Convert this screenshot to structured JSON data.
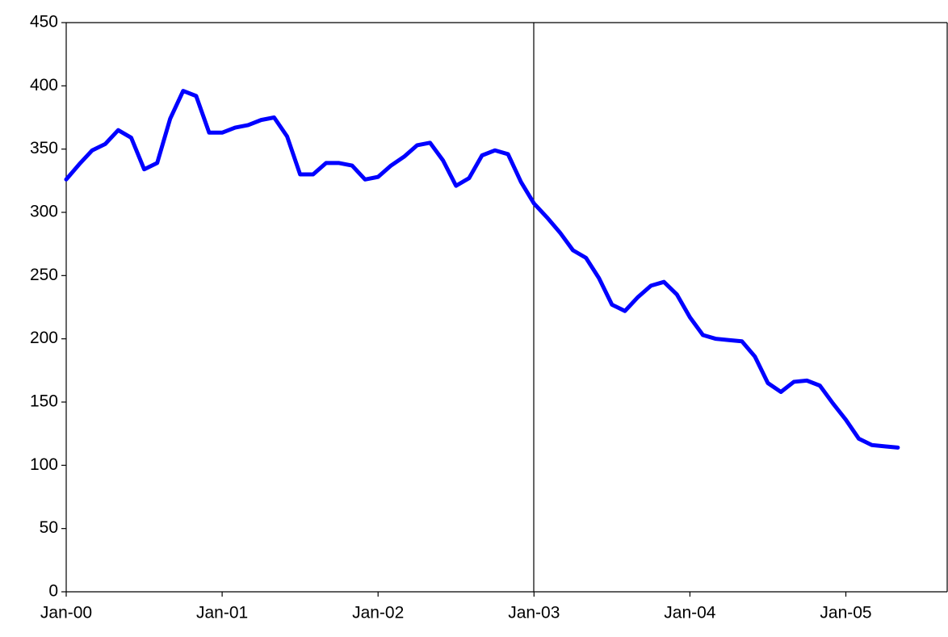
{
  "chart_data": {
    "type": "line",
    "categories": [
      "Jan-00",
      null,
      null,
      null,
      null,
      null,
      null,
      null,
      null,
      null,
      null,
      null,
      "Jan-01",
      null,
      null,
      null,
      null,
      null,
      null,
      null,
      null,
      null,
      null,
      null,
      "Jan-02",
      null,
      null,
      null,
      null,
      null,
      null,
      null,
      null,
      null,
      null,
      null,
      "Jan-03",
      null,
      null,
      null,
      null,
      null,
      null,
      null,
      null,
      null,
      null,
      null,
      "Jan-04",
      null,
      null,
      null,
      null,
      null,
      null,
      null,
      null,
      null,
      null,
      null,
      "Jan-05",
      null,
      null,
      null,
      null
    ],
    "series": [
      {
        "color": "#0000ff",
        "values": [
          326,
          338,
          349,
          354,
          365,
          359,
          334,
          339,
          374,
          396,
          392,
          363,
          363,
          367,
          369,
          373,
          375,
          360,
          330,
          330,
          339,
          339,
          337,
          326,
          328,
          337,
          344,
          353,
          355,
          341,
          321,
          327,
          345,
          349,
          346,
          324,
          307,
          296,
          284,
          270,
          264,
          248,
          227,
          222,
          233,
          242,
          245,
          235,
          217,
          203,
          200,
          199,
          198,
          186,
          165,
          158,
          166,
          167,
          163,
          149,
          136,
          121,
          116,
          115,
          114
        ]
      }
    ],
    "ylim": [
      0,
      450
    ],
    "yticks": [
      0,
      50,
      100,
      150,
      200,
      250,
      300,
      350,
      400,
      450
    ]
  }
}
